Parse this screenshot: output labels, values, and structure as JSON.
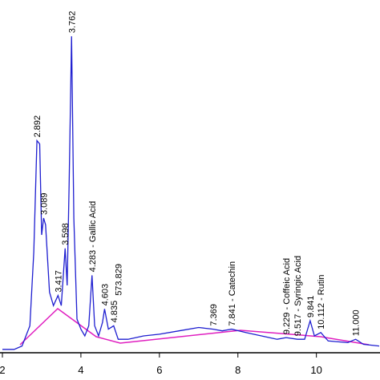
{
  "chart_data": {
    "type": "line",
    "x": [
      2.0,
      2.3,
      2.5,
      2.7,
      2.8,
      2.88,
      2.95,
      3.0,
      3.05,
      3.1,
      3.2,
      3.3,
      3.417,
      3.5,
      3.598,
      3.65,
      3.7,
      3.762,
      3.82,
      3.9,
      4.0,
      4.1,
      4.2,
      4.283,
      4.35,
      4.45,
      4.55,
      4.603,
      4.7,
      4.835,
      4.95,
      5.2,
      5.6,
      6.0,
      6.5,
      7.0,
      7.369,
      7.6,
      7.841,
      8.2,
      8.6,
      9.0,
      9.229,
      9.517,
      9.7,
      9.841,
      9.95,
      10.112,
      10.3,
      10.8,
      11.0,
      11.2,
      11.6
    ],
    "series": [
      {
        "color": "#1f1fd0",
        "values": [
          1,
          1,
          2,
          8,
          30,
          63,
          62,
          35,
          40,
          38,
          18,
          14,
          17,
          14,
          31,
          20,
          50,
          94,
          40,
          10,
          7,
          5,
          8,
          23,
          8,
          5,
          9,
          13,
          7,
          8,
          4,
          4,
          5,
          5.5,
          6.5,
          7.5,
          7,
          6.5,
          7,
          6,
          5,
          4,
          4.5,
          4,
          4,
          9.5,
          5,
          6,
          3.5,
          3,
          4,
          2.5,
          2
        ]
      }
    ],
    "xlim": [
      2,
      11.6
    ],
    "ylim": [
      0,
      100
    ],
    "xticks": [
      2,
      4,
      6,
      8,
      10
    ],
    "annotations": [
      {
        "text": "2.892",
        "x": 2.88,
        "y": 63
      },
      {
        "text": "3.762",
        "x": 3.762,
        "y": 94
      },
      {
        "text": "3.089",
        "x": 3.05,
        "y": 40
      },
      {
        "text": "3.598",
        "x": 3.598,
        "y": 31
      },
      {
        "text": "3.417",
        "x": 3.417,
        "y": 17
      },
      {
        "text": "4.283 - Gallic Acid",
        "x": 4.283,
        "y": 23
      },
      {
        "text": "4.603",
        "x": 4.603,
        "y": 13
      },
      {
        "text": "4.835",
        "x": 4.835,
        "y": 8
      },
      {
        "text": "573.829",
        "x": 4.95,
        "y": 16
      },
      {
        "text": "7.369",
        "x": 7.369,
        "y": 7
      },
      {
        "text": "7.841 - Catechin",
        "x": 7.841,
        "y": 7
      },
      {
        "text": "9.229 - Coffeic Acid",
        "x": 9.229,
        "y": 4.5
      },
      {
        "text": "9.517 - Syringic Acid",
        "x": 9.517,
        "y": 4
      },
      {
        "text": "9.841",
        "x": 9.841,
        "y": 9.5
      },
      {
        "text": "10.112 - Rutin",
        "x": 10.112,
        "y": 6
      },
      {
        "text": "11.000",
        "x": 11.0,
        "y": 4
      }
    ]
  }
}
